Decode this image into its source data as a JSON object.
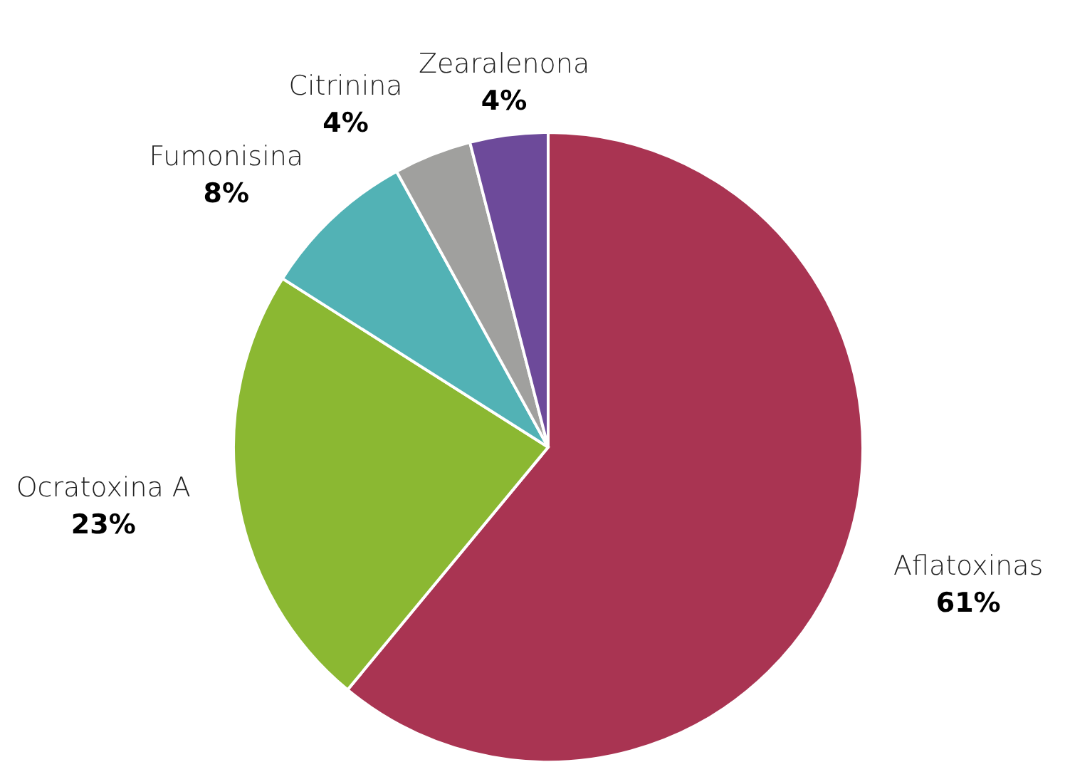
{
  "chart_data": {
    "type": "pie",
    "categories": [
      "Aflatoxinas",
      "Ocratoxina A",
      "Fumonisina",
      "Citrinina",
      "Zearalenona"
    ],
    "values": [
      61,
      23,
      8,
      4,
      4
    ],
    "colors": [
      "#a93452",
      "#8bb832",
      "#52b2b5",
      "#a0a09e",
      "#6d4a9a"
    ],
    "value_labels": [
      "61%",
      "23%",
      "8%",
      "4%",
      "4%"
    ]
  }
}
